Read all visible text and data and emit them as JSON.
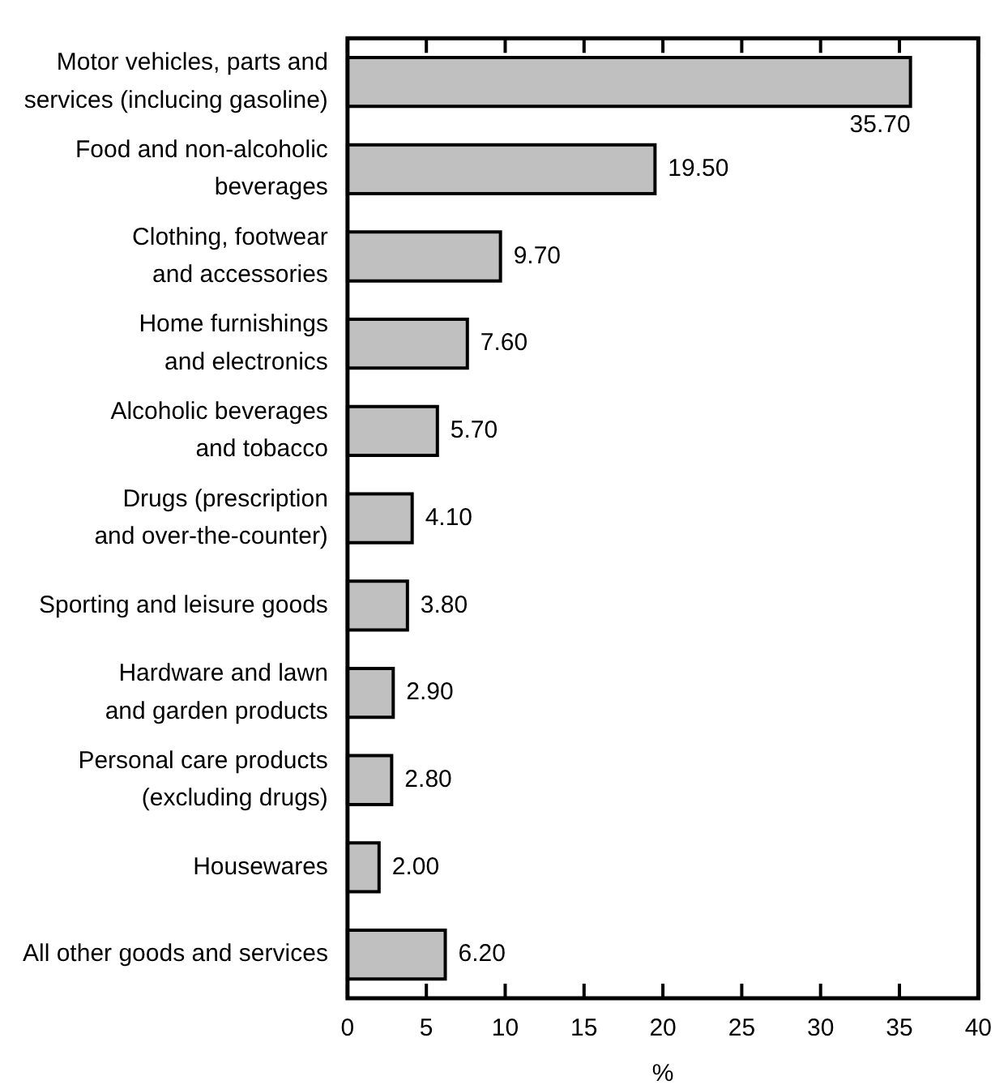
{
  "chart_data": {
    "type": "bar",
    "orientation": "horizontal",
    "xlabel": "%",
    "categories": [
      "Motor vehicles, parts and services (inclucing gasoline)",
      "Food and non-alcoholic beverages",
      "Clothing, footwear and accessories",
      "Home furnishings and electronics",
      "Alcoholic beverages and tobacco",
      "Drugs (prescription and over-the-counter)",
      "Sporting and leisure goods",
      "Hardware and lawn and garden products",
      "Personal care products (excluding drugs)",
      "Housewares",
      "All other goods and services"
    ],
    "values": [
      35.7,
      19.5,
      9.7,
      7.6,
      5.7,
      4.1,
      3.8,
      2.9,
      2.8,
      2.0,
      6.2
    ],
    "value_labels": [
      "35.70",
      "19.50",
      "9.70",
      "7.60",
      "5.70",
      "4.10",
      "3.80",
      "2.90",
      "2.80",
      "2.00",
      "6.20"
    ],
    "color": "#c0c0c0",
    "xlim": [
      0,
      40
    ],
    "xticks": [
      0,
      5,
      10,
      15,
      20,
      25,
      30,
      35,
      40
    ],
    "grid": false,
    "legend": false
  }
}
